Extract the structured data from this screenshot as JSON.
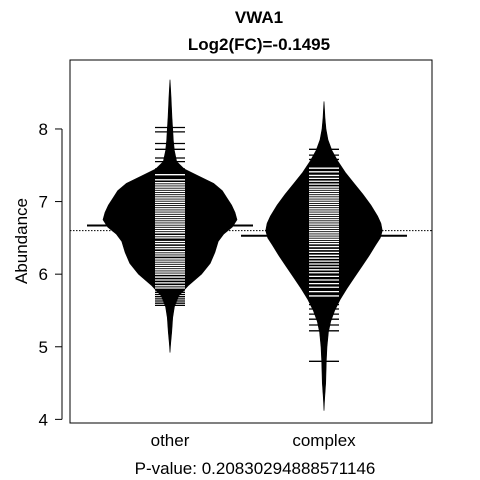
{
  "chart_data": {
    "type": "beanplot",
    "title": "VWA1",
    "subtitle": "Log2(FC)=-0.1495",
    "ylabel": "Abundance",
    "xlabel": "P-value: 0.20830294888571146",
    "ylim": [
      3.95,
      8.95
    ],
    "yticks": [
      4,
      5,
      6,
      7,
      8
    ],
    "overall_mean": 6.6,
    "categories": [
      "other",
      "complex"
    ],
    "groups": [
      {
        "name": "other",
        "mean": 6.67,
        "density": [
          [
            4.92,
            0.0
          ],
          [
            5.05,
            0.01
          ],
          [
            5.2,
            0.025
          ],
          [
            5.4,
            0.04
          ],
          [
            5.55,
            0.065
          ],
          [
            5.7,
            0.13
          ],
          [
            5.85,
            0.28
          ],
          [
            6.0,
            0.47
          ],
          [
            6.15,
            0.6
          ],
          [
            6.3,
            0.67
          ],
          [
            6.45,
            0.72
          ],
          [
            6.55,
            0.8
          ],
          [
            6.65,
            0.93
          ],
          [
            6.75,
            1.0
          ],
          [
            6.85,
            0.97
          ],
          [
            6.95,
            0.92
          ],
          [
            7.05,
            0.85
          ],
          [
            7.15,
            0.78
          ],
          [
            7.25,
            0.65
          ],
          [
            7.35,
            0.43
          ],
          [
            7.45,
            0.21
          ],
          [
            7.55,
            0.1
          ],
          [
            7.7,
            0.065
          ],
          [
            7.85,
            0.05
          ],
          [
            8.0,
            0.04
          ],
          [
            8.15,
            0.03
          ],
          [
            8.3,
            0.022
          ],
          [
            8.45,
            0.015
          ],
          [
            8.6,
            0.006
          ],
          [
            8.68,
            0.0
          ]
        ],
        "observations": [
          5.57,
          5.6,
          5.63,
          5.66,
          5.69,
          5.72,
          5.75,
          5.78,
          5.81,
          5.84,
          5.88,
          5.92,
          5.96,
          6.0,
          6.03,
          6.06,
          6.09,
          6.12,
          6.15,
          6.18,
          6.21,
          6.25,
          6.28,
          6.31,
          6.35,
          6.38,
          6.42,
          6.45,
          6.5,
          6.53,
          6.57,
          6.6,
          6.63,
          6.66,
          6.69,
          6.72,
          6.75,
          6.78,
          6.81,
          6.84,
          6.87,
          6.9,
          6.93,
          6.96,
          6.99,
          7.02,
          7.05,
          7.08,
          7.11,
          7.14,
          7.17,
          7.2,
          7.23,
          7.26,
          7.3,
          7.37,
          7.45,
          7.55,
          7.6,
          7.72,
          7.8,
          7.96,
          8.02
        ]
      },
      {
        "name": "complex",
        "mean": 6.53,
        "density": [
          [
            4.12,
            0.0
          ],
          [
            4.3,
            0.01
          ],
          [
            4.5,
            0.025
          ],
          [
            4.8,
            0.035
          ],
          [
            5.0,
            0.045
          ],
          [
            5.2,
            0.065
          ],
          [
            5.35,
            0.1
          ],
          [
            5.5,
            0.16
          ],
          [
            5.65,
            0.24
          ],
          [
            5.8,
            0.34
          ],
          [
            5.95,
            0.45
          ],
          [
            6.1,
            0.56
          ],
          [
            6.25,
            0.67
          ],
          [
            6.4,
            0.77
          ],
          [
            6.5,
            0.84
          ],
          [
            6.6,
            0.87
          ],
          [
            6.7,
            0.85
          ],
          [
            6.8,
            0.8
          ],
          [
            6.95,
            0.7
          ],
          [
            7.1,
            0.58
          ],
          [
            7.25,
            0.45
          ],
          [
            7.4,
            0.32
          ],
          [
            7.55,
            0.21
          ],
          [
            7.7,
            0.12
          ],
          [
            7.85,
            0.06
          ],
          [
            8.0,
            0.03
          ],
          [
            8.15,
            0.015
          ],
          [
            8.3,
            0.006
          ],
          [
            8.38,
            0.0
          ]
        ],
        "observations": [
          4.8,
          5.22,
          5.3,
          5.38,
          5.45,
          5.52,
          5.58,
          5.64,
          5.7,
          5.76,
          5.82,
          5.87,
          5.92,
          5.97,
          6.02,
          6.06,
          6.1,
          6.14,
          6.18,
          6.22,
          6.26,
          6.3,
          6.34,
          6.38,
          6.42,
          6.45,
          6.48,
          6.51,
          6.54,
          6.57,
          6.6,
          6.63,
          6.66,
          6.69,
          6.72,
          6.75,
          6.78,
          6.81,
          6.84,
          6.87,
          6.9,
          6.93,
          6.96,
          6.99,
          7.02,
          7.05,
          7.08,
          7.11,
          7.14,
          7.17,
          7.2,
          7.24,
          7.28,
          7.32,
          7.36,
          7.41,
          7.46,
          7.52,
          7.58,
          7.64,
          7.72
        ]
      }
    ],
    "grid": false,
    "colors": {
      "bean": "#000000",
      "line": "#ffffff",
      "background": "#ffffff"
    }
  }
}
